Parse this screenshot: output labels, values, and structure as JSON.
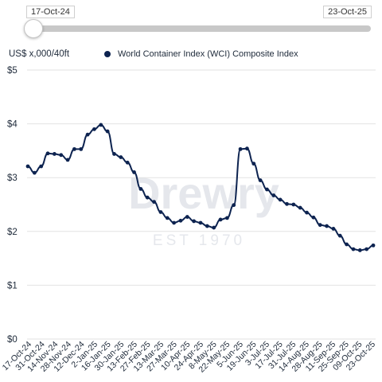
{
  "range_slider": {
    "start_label": "17-Oct-24",
    "end_label": "23-Oct-25"
  },
  "colors": {
    "series": "#0d2350",
    "grid": "#e2e2e2",
    "watermark": "#c9ced6"
  },
  "chart_data": {
    "type": "line",
    "title": "",
    "ylabel": "US$ x,000/40ft",
    "xlabel": "",
    "ylim": [
      0,
      5
    ],
    "yticks": [
      "$0",
      "$1",
      "$2",
      "$3",
      "$4",
      "$5"
    ],
    "grid": true,
    "legend_position": "top",
    "watermark": {
      "text": "Drewry",
      "subtext": "EST 1970"
    },
    "x_tick_labels": [
      "17-Oct-24",
      "31-Oct-24",
      "14-Nov-24",
      "28-Nov-24",
      "12-Dec-24",
      "2-Jan-25",
      "16-Jan-25",
      "30-Jan-25",
      "13-Feb-25",
      "27-Feb-25",
      "13-Mar-25",
      "27-Mar-25",
      "10-Apr-25",
      "24-Apr-25",
      "8-May-25",
      "22-May-25",
      "5-Jun-25",
      "19-Jun-25",
      "3-Jul-25",
      "17-Jul-25",
      "31-Jul-25",
      "14-Aug-25",
      "28-Aug-25",
      "11-Sep-25",
      "25-Sep-25",
      "09-Oct-25",
      "23-Oct-25"
    ],
    "series": [
      {
        "name": "World Container Index (WCI) Composite Index",
        "values": [
          3.21,
          3.09,
          3.21,
          3.45,
          3.44,
          3.42,
          3.33,
          3.53,
          3.53,
          3.8,
          3.9,
          3.98,
          3.86,
          3.44,
          3.38,
          3.28,
          3.1,
          2.79,
          2.63,
          2.55,
          2.36,
          2.25,
          2.16,
          2.2,
          2.27,
          2.19,
          2.16,
          2.1,
          2.07,
          2.22,
          2.25,
          2.49,
          3.53,
          3.54,
          3.26,
          2.95,
          2.78,
          2.67,
          2.59,
          2.51,
          2.5,
          2.44,
          2.35,
          2.26,
          2.12,
          2.1,
          2.05,
          1.92,
          1.76,
          1.67,
          1.65,
          1.67,
          1.74
        ]
      }
    ]
  }
}
